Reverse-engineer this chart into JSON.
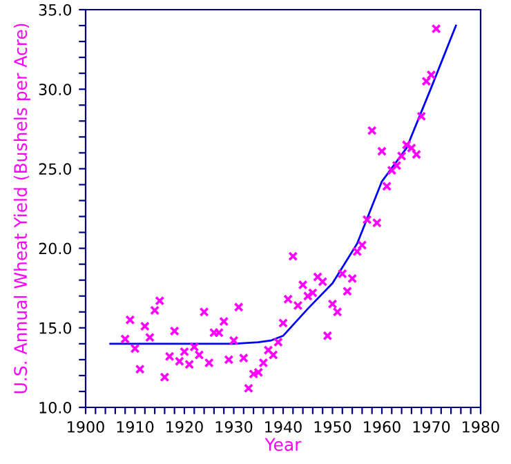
{
  "chart_data": {
    "type": "scatter",
    "xlabel": "Year",
    "ylabel": "U.S. Annual Wheat Yield (Bushels per Acre)",
    "xlim": [
      1900,
      1980
    ],
    "ylim": [
      10,
      35
    ],
    "xticks": [
      1900,
      {
        "value": 1902,
        "label": null
      },
      {
        "value": 1904,
        "label": null
      },
      {
        "value": 1906,
        "label": null
      },
      {
        "value": 1908,
        "label": null
      },
      1910,
      {
        "value": 1912,
        "label": null
      },
      {
        "value": 1914,
        "label": null
      },
      {
        "value": 1916,
        "label": null
      },
      {
        "value": 1918,
        "label": null
      },
      1920,
      {
        "value": 1922,
        "label": null
      },
      {
        "value": 1924,
        "label": null
      },
      {
        "value": 1926,
        "label": null
      },
      {
        "value": 1928,
        "label": null
      },
      1930,
      {
        "value": 1932,
        "label": null
      },
      {
        "value": 1934,
        "label": null
      },
      {
        "value": 1936,
        "label": null
      },
      {
        "value": 1938,
        "label": null
      },
      1940,
      {
        "value": 1942,
        "label": null
      },
      {
        "value": 1944,
        "label": null
      },
      {
        "value": 1946,
        "label": null
      },
      {
        "value": 1948,
        "label": null
      },
      1950,
      {
        "value": 1952,
        "label": null
      },
      {
        "value": 1954,
        "label": null
      },
      {
        "value": 1956,
        "label": null
      },
      {
        "value": 1958,
        "label": null
      },
      1960,
      {
        "value": 1962,
        "label": null
      },
      {
        "value": 1964,
        "label": null
      },
      {
        "value": 1966,
        "label": null
      },
      {
        "value": 1968,
        "label": null
      },
      1970,
      {
        "value": 1972,
        "label": null
      },
      {
        "value": 1974,
        "label": null
      },
      {
        "value": 1976,
        "label": null
      },
      {
        "value": 1978,
        "label": null
      },
      1980
    ],
    "yticks": [
      {
        "value": 10,
        "label": "10.0"
      },
      {
        "value": 11,
        "label": null
      },
      {
        "value": 12,
        "label": null
      },
      {
        "value": 13,
        "label": null
      },
      {
        "value": 14,
        "label": null
      },
      {
        "value": 15,
        "label": "15.0"
      },
      {
        "value": 16,
        "label": null
      },
      {
        "value": 17,
        "label": null
      },
      {
        "value": 18,
        "label": null
      },
      {
        "value": 19,
        "label": null
      },
      {
        "value": 20,
        "label": "20.0"
      },
      {
        "value": 21,
        "label": null
      },
      {
        "value": 22,
        "label": null
      },
      {
        "value": 23,
        "label": null
      },
      {
        "value": 24,
        "label": null
      },
      {
        "value": 25,
        "label": "25.0"
      },
      {
        "value": 26,
        "label": null
      },
      {
        "value": 27,
        "label": null
      },
      {
        "value": 28,
        "label": null
      },
      {
        "value": 29,
        "label": null
      },
      {
        "value": 30,
        "label": "30.0"
      },
      {
        "value": 31,
        "label": null
      },
      {
        "value": 32,
        "label": null
      },
      {
        "value": 33,
        "label": null
      },
      {
        "value": 34,
        "label": null
      },
      {
        "value": 35,
        "label": "35.0"
      }
    ],
    "grid": false,
    "legend": false,
    "series": [
      {
        "color": "#ff00ff",
        "marker": "cross",
        "x": [
          1908,
          1909,
          1910,
          1911,
          1912,
          1913,
          1914,
          1915,
          1916,
          1917,
          1918,
          1919,
          1920,
          1921,
          1922,
          1923,
          1924,
          1925,
          1926,
          1927,
          1928,
          1929,
          1930,
          1931,
          1932,
          1933,
          1934,
          1935,
          1936,
          1937,
          1938,
          1939,
          1940,
          1941,
          1942,
          1943,
          1944,
          1945,
          1946,
          1947,
          1948,
          1949,
          1950,
          1951,
          1952,
          1953,
          1954,
          1955,
          1956,
          1957,
          1958,
          1959,
          1960,
          1961,
          1962,
          1963,
          1964,
          1965,
          1966,
          1967,
          1968,
          1969,
          1970,
          1971
        ],
        "values": [
          14.3,
          15.5,
          13.7,
          12.4,
          15.1,
          14.4,
          16.1,
          16.7,
          11.9,
          13.2,
          14.8,
          12.9,
          13.5,
          12.7,
          13.8,
          13.3,
          16.0,
          12.8,
          14.7,
          14.7,
          15.4,
          13.0,
          14.2,
          16.3,
          13.1,
          11.2,
          12.1,
          12.2,
          12.8,
          13.6,
          13.3,
          14.1,
          15.3,
          16.8,
          19.5,
          16.4,
          17.7,
          17.0,
          17.2,
          18.2,
          17.9,
          14.5,
          16.5,
          16.0,
          18.4,
          17.3,
          18.1,
          19.8,
          20.2,
          21.8,
          27.4,
          21.6,
          26.1,
          23.9,
          24.9,
          25.2,
          25.8,
          26.5,
          26.3,
          25.9,
          28.3,
          30.5,
          30.9,
          33.8
        ]
      },
      {
        "type": "line",
        "color": "#0000ff",
        "line_style": "solid",
        "marker": "none",
        "x": [
          1905,
          1910,
          1920,
          1930,
          1935,
          1937.5,
          1940,
          1945,
          1950,
          1955,
          1960,
          1965,
          1970,
          1975
        ],
        "values": [
          14.0,
          14.0,
          14.0,
          14.0,
          14.1,
          14.2,
          14.5,
          16.2,
          17.8,
          20.3,
          24.2,
          26.3,
          30.1,
          34.0
        ]
      }
    ]
  }
}
